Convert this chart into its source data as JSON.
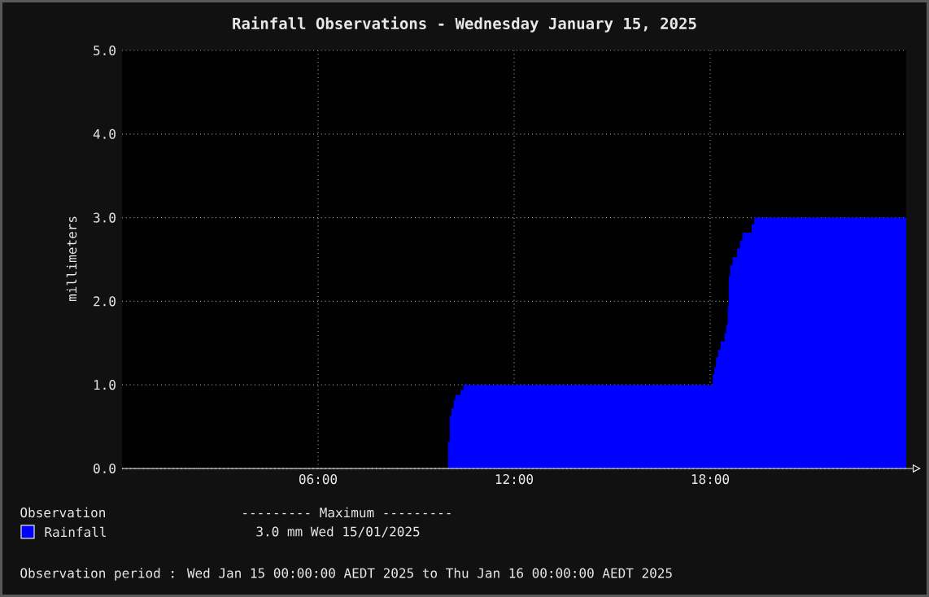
{
  "chart_data": {
    "type": "area",
    "title": "Rainfall Observations - Wednesday January 15, 2025",
    "ylabel": "millimeters",
    "legend_title": "Observation",
    "legend": "bottom",
    "grid": true,
    "x": [
      0,
      9.98,
      10.03,
      10.08,
      10.15,
      10.2,
      10.36,
      10.45,
      18.08,
      18.13,
      18.18,
      18.24,
      18.32,
      18.44,
      18.49,
      18.54,
      18.57,
      18.61,
      18.69,
      18.82,
      18.91,
      18.99,
      19.27,
      19.35,
      24
    ],
    "series": [
      {
        "name": "Rainfall",
        "color": "#0000ff",
        "values": [
          0,
          0.32,
          0.63,
          0.72,
          0.82,
          0.88,
          0.94,
          1.0,
          1.13,
          1.21,
          1.33,
          1.42,
          1.52,
          1.62,
          1.72,
          1.94,
          2.3,
          2.43,
          2.53,
          2.63,
          2.72,
          2.82,
          2.92,
          3.0,
          3.0
        ]
      }
    ],
    "xlim": [
      0,
      24
    ],
    "xticks": [
      {
        "value": 6,
        "label": "06:00"
      },
      {
        "value": 12,
        "label": "12:00"
      },
      {
        "value": 18,
        "label": "18:00"
      }
    ],
    "ylim": [
      0,
      5
    ],
    "yticks": [
      {
        "value": 0,
        "label": "0.0"
      },
      {
        "value": 1,
        "label": "1.0"
      },
      {
        "value": 2,
        "label": "2.0"
      },
      {
        "value": 3,
        "label": "3.0"
      },
      {
        "value": 4,
        "label": "4.0"
      },
      {
        "value": 5,
        "label": "5.0"
      }
    ],
    "annotations": [
      "--------- Maximum ---------",
      "3.0 mm  Wed 15/01/2025",
      "Observation period : Wed Jan 15 00:00:00 AEDT 2025 to Thu Jan 16 00:00:00 AEDT 2025"
    ]
  }
}
